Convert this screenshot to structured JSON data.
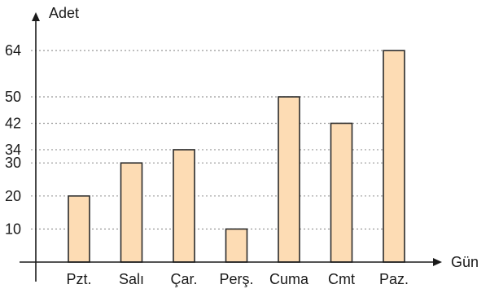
{
  "chart_data": {
    "type": "bar",
    "xlabel": "Gün",
    "ylabel": "Adet",
    "categories": [
      "Pzt.",
      "Salı",
      "Çar.",
      "Perş.",
      "Cuma",
      "Cmt",
      "Paz."
    ],
    "values": [
      20,
      30,
      34,
      10,
      50,
      42,
      64
    ],
    "yticks": [
      10,
      20,
      30,
      34,
      42,
      50,
      64
    ],
    "ylim": [
      0,
      72
    ],
    "grid": "dotted horizontal lines at tick values",
    "legend": "none",
    "colors": {
      "bar_fill": "#fddcb4",
      "bar_stroke": "#2b2b2b",
      "grid": "#9a9a9a",
      "axis": "#1a1a1a"
    }
  }
}
